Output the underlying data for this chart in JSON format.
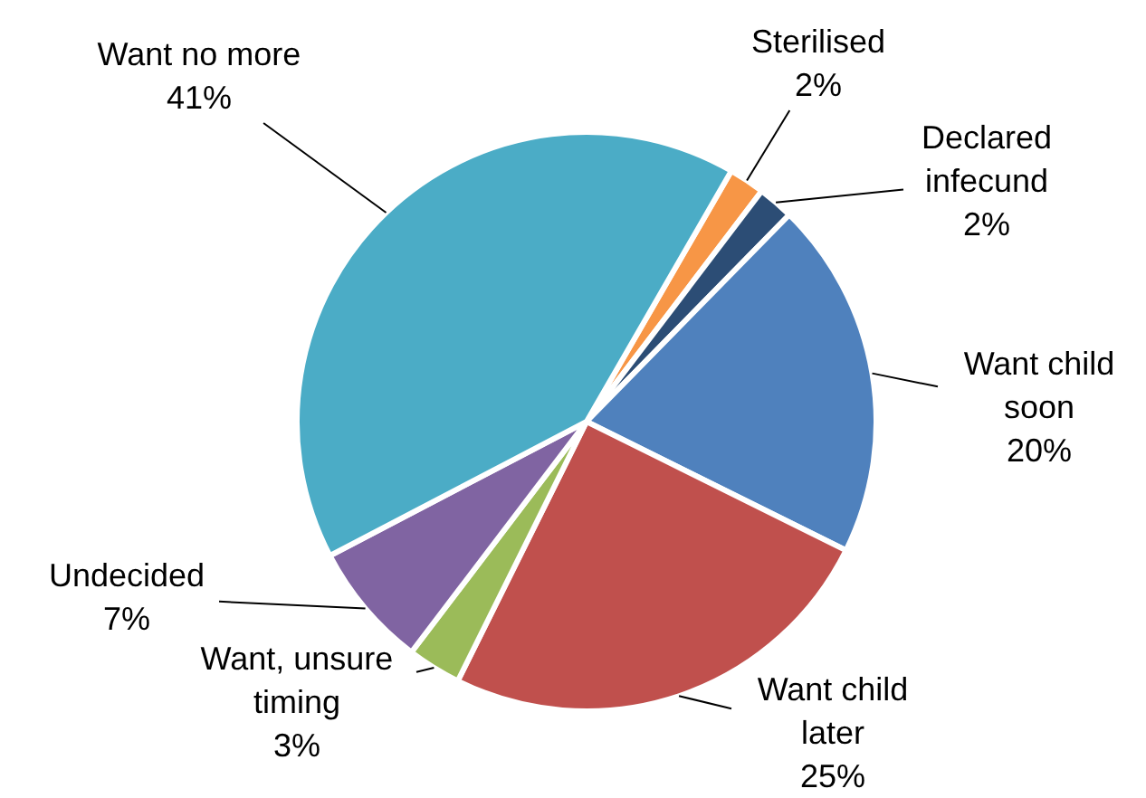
{
  "chart_data": {
    "type": "pie",
    "categories": [
      "Sterilised",
      "Declared infecund",
      "Want child soon",
      "Want child later",
      "Want, unsure timing",
      "Undecided",
      "Want no more"
    ],
    "values": [
      2,
      2,
      20,
      25,
      3,
      7,
      41
    ],
    "value_labels": [
      "2%",
      "2%",
      "20%",
      "25%",
      "3%",
      "7%",
      "41%"
    ],
    "colors": [
      "#f79646",
      "#2c4d75",
      "#4f81bd",
      "#c0504d",
      "#9bbb59",
      "#8064a2",
      "#4bacc6"
    ],
    "legend": false
  }
}
